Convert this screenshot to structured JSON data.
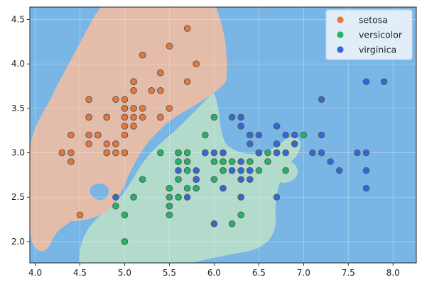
{
  "chart_data": {
    "type": "scatter",
    "title": "",
    "xlabel": "",
    "ylabel": "",
    "xlim": [
      3.94,
      8.26
    ],
    "ylim": [
      1.76,
      4.64
    ],
    "xticks": [
      "4.0",
      "4.5",
      "5.0",
      "5.5",
      "6.0",
      "6.5",
      "7.0",
      "7.5",
      "8.0"
    ],
    "yticks": [
      "2.0",
      "2.5",
      "3.0",
      "3.5",
      "4.0",
      "4.5"
    ],
    "grid": true,
    "legend_position": "top-right",
    "background_color": "#79b6e6",
    "decision_regions": [
      {
        "class": "setosa",
        "color": "#e3bcaa"
      },
      {
        "class": "versicolor",
        "color": "#b2dbcb"
      },
      {
        "class": "virginica",
        "color": "#79b6e6"
      }
    ],
    "series": [
      {
        "name": "setosa",
        "color": "#e8783a",
        "points": [
          [
            5.1,
            3.5
          ],
          [
            4.9,
            3.0
          ],
          [
            4.7,
            3.2
          ],
          [
            4.6,
            3.1
          ],
          [
            5.0,
            3.6
          ],
          [
            5.4,
            3.9
          ],
          [
            4.6,
            3.4
          ],
          [
            5.0,
            3.4
          ],
          [
            4.4,
            2.9
          ],
          [
            4.9,
            3.1
          ],
          [
            5.4,
            3.7
          ],
          [
            4.8,
            3.4
          ],
          [
            4.8,
            3.0
          ],
          [
            4.3,
            3.0
          ],
          [
            5.8,
            4.0
          ],
          [
            5.7,
            4.4
          ],
          [
            5.4,
            3.9
          ],
          [
            5.1,
            3.5
          ],
          [
            5.7,
            3.8
          ],
          [
            5.1,
            3.8
          ],
          [
            5.4,
            3.4
          ],
          [
            5.1,
            3.7
          ],
          [
            4.6,
            3.6
          ],
          [
            5.1,
            3.3
          ],
          [
            4.8,
            3.4
          ],
          [
            5.0,
            3.0
          ],
          [
            5.0,
            3.4
          ],
          [
            5.2,
            3.5
          ],
          [
            5.2,
            3.4
          ],
          [
            4.7,
            3.2
          ],
          [
            4.8,
            3.1
          ],
          [
            5.4,
            3.4
          ],
          [
            5.2,
            4.1
          ],
          [
            5.5,
            4.2
          ],
          [
            4.9,
            3.1
          ],
          [
            5.0,
            3.2
          ],
          [
            5.5,
            3.5
          ],
          [
            4.9,
            3.6
          ],
          [
            4.4,
            3.0
          ],
          [
            5.1,
            3.4
          ],
          [
            5.0,
            3.5
          ],
          [
            4.5,
            2.3
          ],
          [
            4.4,
            3.2
          ],
          [
            5.0,
            3.5
          ],
          [
            5.1,
            3.8
          ],
          [
            4.8,
            3.0
          ],
          [
            5.1,
            3.8
          ],
          [
            4.6,
            3.2
          ],
          [
            5.3,
            3.7
          ],
          [
            5.0,
            3.3
          ]
        ]
      },
      {
        "name": "versicolor",
        "color": "#22b566",
        "points": [
          [
            7.0,
            3.2
          ],
          [
            6.4,
            3.2
          ],
          [
            6.9,
            3.1
          ],
          [
            5.5,
            2.3
          ],
          [
            6.5,
            2.8
          ],
          [
            5.7,
            2.8
          ],
          [
            6.3,
            3.3
          ],
          [
            4.9,
            2.4
          ],
          [
            6.6,
            2.9
          ],
          [
            5.2,
            2.7
          ],
          [
            5.0,
            2.0
          ],
          [
            5.9,
            3.0
          ],
          [
            6.0,
            2.2
          ],
          [
            6.1,
            2.9
          ],
          [
            5.6,
            2.9
          ],
          [
            6.7,
            3.1
          ],
          [
            5.6,
            3.0
          ],
          [
            5.8,
            2.7
          ],
          [
            6.2,
            2.2
          ],
          [
            5.6,
            2.5
          ],
          [
            5.9,
            3.2
          ],
          [
            6.1,
            2.8
          ],
          [
            6.3,
            2.5
          ],
          [
            6.1,
            2.8
          ],
          [
            6.4,
            2.9
          ],
          [
            6.6,
            3.0
          ],
          [
            6.8,
            2.8
          ],
          [
            6.7,
            3.0
          ],
          [
            6.0,
            2.9
          ],
          [
            5.7,
            2.6
          ],
          [
            5.5,
            2.4
          ],
          [
            5.5,
            2.4
          ],
          [
            5.8,
            2.7
          ],
          [
            6.0,
            2.7
          ],
          [
            5.4,
            3.0
          ],
          [
            6.0,
            3.4
          ],
          [
            6.7,
            3.1
          ],
          [
            6.3,
            2.3
          ],
          [
            5.6,
            3.0
          ],
          [
            5.5,
            2.5
          ],
          [
            5.5,
            2.6
          ],
          [
            6.1,
            3.0
          ],
          [
            5.8,
            2.6
          ],
          [
            5.0,
            2.3
          ],
          [
            5.6,
            2.7
          ],
          [
            5.7,
            3.0
          ],
          [
            5.7,
            2.9
          ],
          [
            6.2,
            2.9
          ],
          [
            5.1,
            2.5
          ],
          [
            5.7,
            2.8
          ]
        ]
      },
      {
        "name": "virginica",
        "color": "#3468d8",
        "points": [
          [
            6.3,
            3.3
          ],
          [
            5.8,
            2.7
          ],
          [
            7.1,
            3.0
          ],
          [
            6.3,
            2.9
          ],
          [
            6.5,
            3.0
          ],
          [
            7.6,
            3.0
          ],
          [
            4.9,
            2.5
          ],
          [
            7.3,
            2.9
          ],
          [
            6.7,
            2.5
          ],
          [
            7.2,
            3.6
          ],
          [
            6.5,
            3.2
          ],
          [
            6.4,
            2.7
          ],
          [
            6.8,
            3.0
          ],
          [
            5.7,
            2.5
          ],
          [
            5.8,
            2.8
          ],
          [
            6.4,
            3.2
          ],
          [
            6.5,
            3.0
          ],
          [
            7.7,
            3.8
          ],
          [
            7.7,
            2.6
          ],
          [
            6.0,
            2.2
          ],
          [
            6.9,
            3.2
          ],
          [
            5.6,
            2.8
          ],
          [
            7.7,
            2.8
          ],
          [
            6.3,
            2.7
          ],
          [
            6.7,
            3.3
          ],
          [
            7.2,
            3.2
          ],
          [
            6.2,
            2.8
          ],
          [
            6.1,
            3.0
          ],
          [
            6.4,
            2.8
          ],
          [
            7.2,
            3.0
          ],
          [
            7.4,
            2.8
          ],
          [
            7.9,
            3.8
          ],
          [
            6.4,
            2.8
          ],
          [
            6.3,
            2.8
          ],
          [
            6.1,
            2.6
          ],
          [
            7.7,
            3.0
          ],
          [
            6.3,
            3.4
          ],
          [
            6.4,
            3.1
          ],
          [
            6.0,
            3.0
          ],
          [
            6.9,
            3.1
          ],
          [
            6.7,
            3.1
          ],
          [
            6.9,
            3.1
          ],
          [
            5.8,
            2.7
          ],
          [
            6.8,
            3.2
          ],
          [
            6.7,
            3.3
          ],
          [
            6.7,
            3.0
          ],
          [
            6.3,
            2.5
          ],
          [
            6.5,
            3.0
          ],
          [
            6.2,
            3.4
          ],
          [
            5.9,
            3.0
          ]
        ]
      }
    ]
  }
}
